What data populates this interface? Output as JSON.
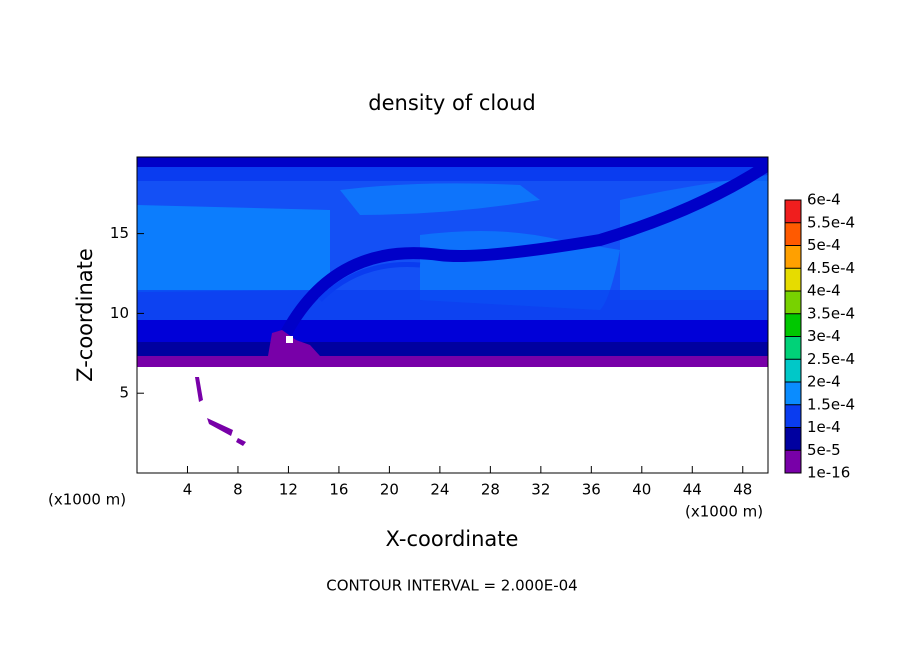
{
  "chart_data": {
    "type": "contour",
    "title": "density of cloud",
    "x_label": "X-coordinate",
    "y_label": "Z-coordinate",
    "x_unit": "(x1000 m)",
    "y_unit": "(x1000 m)",
    "footer": "CONTOUR INTERVAL = 2.000E-04",
    "xlim": [
      0,
      50
    ],
    "xticks": [
      4,
      8,
      12,
      16,
      20,
      24,
      28,
      32,
      36,
      40,
      44,
      48
    ],
    "ylim": [
      0,
      19.8
    ],
    "yticks": [
      5,
      10,
      15
    ],
    "colorbar": {
      "levels": [
        {
          "value": 1e-16,
          "label": "1e-16"
        },
        {
          "value": 5e-05,
          "label": "5e-5"
        },
        {
          "value": 0.0001,
          "label": "1e-4"
        },
        {
          "value": 0.00015,
          "label": "1.5e-4"
        },
        {
          "value": 0.0002,
          "label": "2e-4"
        },
        {
          "value": 0.00025,
          "label": "2.5e-4"
        },
        {
          "value": 0.0003,
          "label": "3e-4"
        },
        {
          "value": 0.00035,
          "label": "3.5e-4"
        },
        {
          "value": 0.0004,
          "label": "4e-4"
        },
        {
          "value": 0.00045,
          "label": "4.5e-4"
        },
        {
          "value": 0.0005,
          "label": "5e-4"
        },
        {
          "value": 0.00055,
          "label": "5.5e-4"
        },
        {
          "value": 0.0006,
          "label": "6e-4"
        }
      ],
      "colors": [
        "#7800a8",
        "#0000a0",
        "#0a3cf0",
        "#0a8cff",
        "#00c8c8",
        "#00d278",
        "#00c800",
        "#78d200",
        "#e6dc00",
        "#ffa000",
        "#ff5a00",
        "#f01e1e",
        "#ff8c8c"
      ]
    }
  }
}
